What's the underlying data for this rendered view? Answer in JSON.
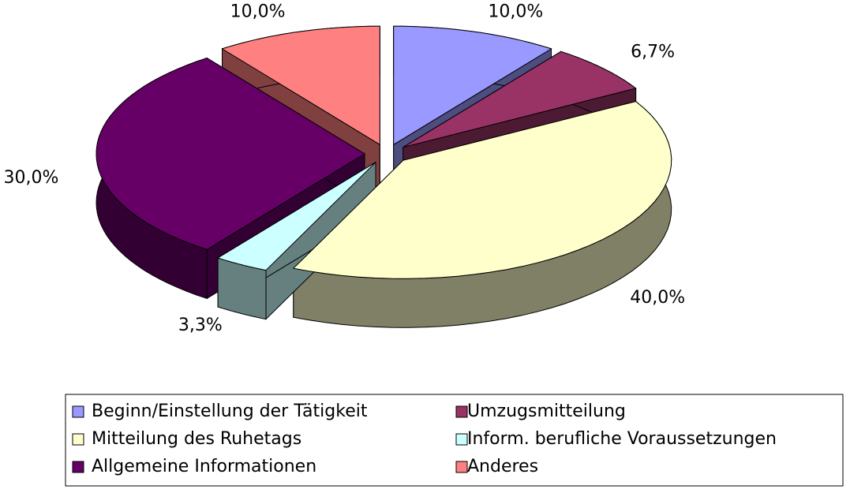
{
  "chart_data": {
    "type": "pie3d",
    "categories": [
      "Beginn/Einstellung der Tätigkeit",
      "Umzugsmitteilung",
      "Mitteilung des Ruhetags",
      "Inform. berufliche Voraussetzungen",
      "Allgemeine Informationen",
      "Anderes"
    ],
    "values": [
      10,
      6.7,
      40,
      3.3,
      30,
      10
    ],
    "value_labels": [
      "10,0%",
      "6,7%",
      "40,0%",
      "3,3%",
      "30,0%",
      "10,0%"
    ],
    "colors": [
      "#9999ff",
      "#993366",
      "#ffffcc",
      "#ccffff",
      "#660066",
      "#ff8080"
    ],
    "legend": "bottom"
  }
}
